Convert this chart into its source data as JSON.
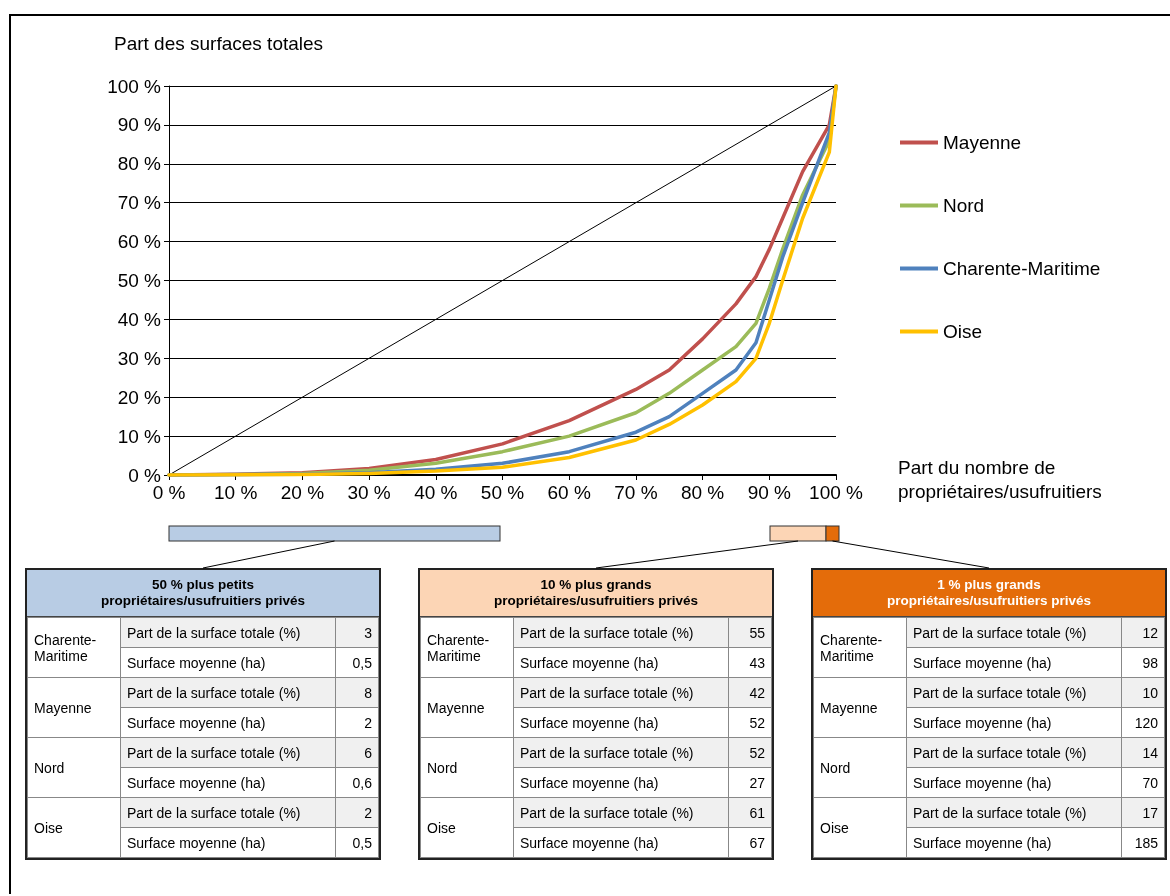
{
  "chart_data": [
    {
      "type": "line",
      "ylabel": "Part des surfaces totales",
      "xlabel": "Part du nombre de propriétaires/usufruitiers",
      "xlim": [
        0,
        100
      ],
      "ylim": [
        0,
        100
      ],
      "xticks": [
        {
          "value": 0,
          "label": "0 %"
        },
        {
          "value": 10,
          "label": "10 %"
        },
        {
          "value": 20,
          "label": "20 %"
        },
        {
          "value": 30,
          "label": "30 %"
        },
        {
          "value": 40,
          "label": "40 %"
        },
        {
          "value": 50,
          "label": "50 %"
        },
        {
          "value": 60,
          "label": "60 %"
        },
        {
          "value": 70,
          "label": "70 %"
        },
        {
          "value": 80,
          "label": "80 %"
        },
        {
          "value": 90,
          "label": "90 %"
        },
        {
          "value": 100,
          "label": "100 %"
        }
      ],
      "yticks": [
        {
          "value": 0,
          "label": "0 %"
        },
        {
          "value": 10,
          "label": "10 %"
        },
        {
          "value": 20,
          "label": "20 %"
        },
        {
          "value": 30,
          "label": "30 %"
        },
        {
          "value": 40,
          "label": "40 %"
        },
        {
          "value": 50,
          "label": "50 %"
        },
        {
          "value": 60,
          "label": "60 %"
        },
        {
          "value": 70,
          "label": "70 %"
        },
        {
          "value": 80,
          "label": "80 %"
        },
        {
          "value": 90,
          "label": "90 %"
        },
        {
          "value": 100,
          "label": "100 %"
        }
      ],
      "grid": "y",
      "legend": "right",
      "marker": "none",
      "series": [
        {
          "name": "Mayenne",
          "color": "#c0504d",
          "x": [
            0,
            10,
            20,
            30,
            40,
            50,
            60,
            70,
            75,
            80,
            85,
            88,
            90,
            92,
            95,
            99,
            100
          ],
          "values": [
            0,
            0.2,
            0.6,
            1.7,
            4,
            8,
            14,
            22,
            27,
            35,
            44,
            51,
            58,
            66,
            78,
            90,
            100
          ]
        },
        {
          "name": "Nord",
          "color": "#9bbb59",
          "x": [
            0,
            10,
            20,
            30,
            40,
            50,
            60,
            70,
            75,
            80,
            85,
            88,
            90,
            92,
            95,
            99,
            100
          ],
          "values": [
            0,
            0.1,
            0.4,
            1.2,
            3,
            6,
            10,
            16,
            21,
            27,
            33,
            39,
            48,
            58,
            72,
            86,
            100
          ]
        },
        {
          "name": "Charente-Maritime",
          "color": "#4f81bd",
          "x": [
            0,
            20,
            30,
            40,
            50,
            60,
            70,
            75,
            80,
            85,
            88,
            90,
            92,
            95,
            99,
            100
          ],
          "values": [
            0,
            0.2,
            0.6,
            1.5,
            3,
            6,
            11,
            15,
            21,
            27,
            34,
            45,
            56,
            70,
            88,
            100
          ]
        },
        {
          "name": "Oise",
          "color": "#ffc000",
          "x": [
            0,
            20,
            30,
            40,
            50,
            60,
            70,
            75,
            80,
            85,
            88,
            90,
            92,
            95,
            99,
            100
          ],
          "values": [
            0,
            0.1,
            0.4,
            1,
            2,
            4.5,
            9,
            13,
            18,
            24,
            30,
            39,
            50,
            66,
            83,
            100
          ]
        },
        {
          "type": "line",
          "color": "#000000",
          "x": [
            0,
            100
          ],
          "values": [
            0,
            100
          ]
        }
      ]
    },
    {
      "type": "other",
      "title": "50 % plus petits propriétaires/usufruitiers privés",
      "color": "#b8cce4",
      "annotations": [
        "Charente-Maritime",
        "Part de la surface totale (%)",
        "3",
        "Surface moyenne (ha)",
        "0,5",
        "Mayenne",
        "Part de la surface totale (%)",
        "8",
        "Surface moyenne (ha)",
        "2",
        "Nord",
        "Part de la surface totale (%)",
        "6",
        "Surface moyenne (ha)",
        "0,6",
        "Oise",
        "Part de la surface totale (%)",
        "2",
        "Surface moyenne (ha)",
        "0,5"
      ]
    },
    {
      "type": "other",
      "title": "10 % plus grands propriétaires/usufruitiers privés",
      "color": "#fcd5b5",
      "annotations": [
        "Charente-Maritime",
        "Part de la surface totale (%)",
        "55",
        "Surface moyenne (ha)",
        "43",
        "Mayenne",
        "Part de la surface totale (%)",
        "42",
        "Surface moyenne (ha)",
        "52",
        "Nord",
        "Part de la surface totale (%)",
        "52",
        "Surface moyenne (ha)",
        "27",
        "Oise",
        "Part de la surface totale (%)",
        "61",
        "Surface moyenne (ha)",
        "67"
      ]
    },
    {
      "type": "other",
      "title": "1 % plus grands propriétaires/usufruitiers privés",
      "color": "#e46c0a",
      "annotations": [
        "Charente-Maritime",
        "Part de la surface totale (%)",
        "12",
        "Surface moyenne (ha)",
        "98",
        "Mayenne",
        "Part de la surface totale (%)",
        "10",
        "Surface moyenne (ha)",
        "120",
        "Nord",
        "Part de la surface totale (%)",
        "14",
        "Surface moyenne (ha)",
        "70",
        "Oise",
        "Part de la surface totale (%)",
        "17",
        "Surface moyenne (ha)",
        "185"
      ]
    }
  ]
}
